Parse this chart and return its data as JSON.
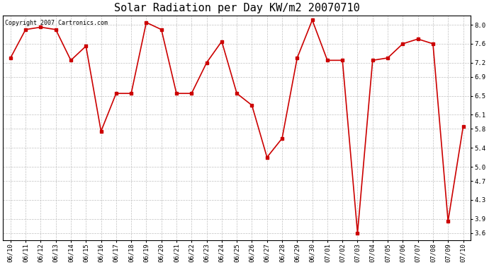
{
  "title": "Solar Radiation per Day KW/m2 20070710",
  "copyright_text": "Copyright 2007 Cartronics.com",
  "labels": [
    "06/10",
    "06/11",
    "06/12",
    "06/13",
    "06/14",
    "06/15",
    "06/16",
    "06/17",
    "06/18",
    "06/19",
    "06/20",
    "06/21",
    "06/22",
    "06/23",
    "06/24",
    "06/25",
    "06/26",
    "06/27",
    "06/28",
    "06/29",
    "06/30",
    "07/01",
    "07/02",
    "07/03",
    "07/04",
    "07/05",
    "07/06",
    "07/07",
    "07/08",
    "07/09",
    "07/10"
  ],
  "values": [
    7.3,
    7.9,
    7.95,
    7.9,
    7.25,
    7.55,
    5.75,
    6.55,
    6.55,
    8.05,
    7.9,
    6.55,
    6.55,
    7.2,
    7.65,
    6.55,
    6.3,
    5.2,
    5.6,
    7.3,
    8.1,
    7.25,
    7.25,
    3.6,
    7.25,
    7.3,
    7.6,
    7.7,
    7.6,
    3.85,
    5.85
  ],
  "yticks": [
    3.6,
    3.9,
    4.3,
    4.7,
    5.0,
    5.4,
    5.8,
    6.1,
    6.5,
    6.9,
    7.2,
    7.6,
    8.0
  ],
  "ylim": [
    3.45,
    8.2
  ],
  "line_color": "#cc0000",
  "marker": "s",
  "marker_size": 2.5,
  "line_width": 1.2,
  "background_color": "#ffffff",
  "grid_color": "#c0c0c0",
  "title_fontsize": 11,
  "tick_fontsize": 6.5,
  "copyright_fontsize": 6
}
